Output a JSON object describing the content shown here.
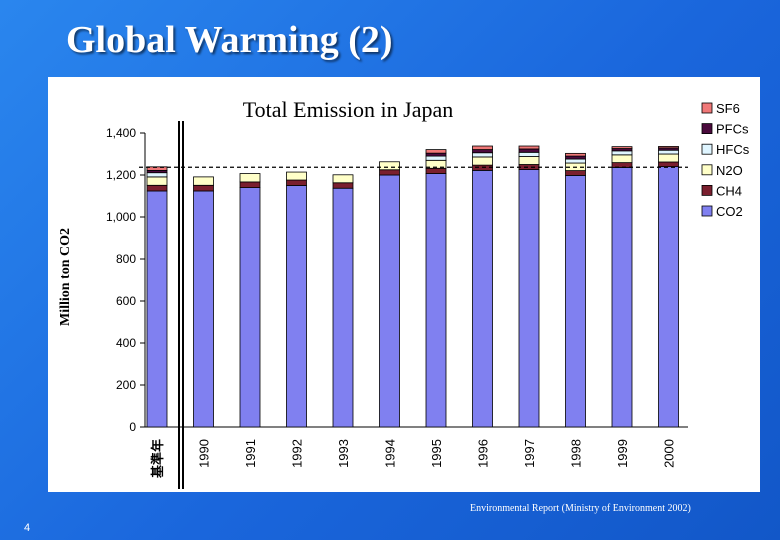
{
  "slide": {
    "title": "Global Warming (2)",
    "source": "Environmental Report (Ministry of Environment 2002)",
    "page_number": "4"
  },
  "chart_data": {
    "type": "bar",
    "stacked": true,
    "title": "Total Emission in Japan",
    "ylabel": "Million ton CO2",
    "xlabel": "",
    "ylim": [
      0,
      1400
    ],
    "yticks": [
      0,
      200,
      400,
      600,
      800,
      1000,
      1200,
      1400
    ],
    "ytick_labels": [
      "0",
      "200",
      "400",
      "600",
      "800",
      "1,000",
      "1,200",
      "1,400"
    ],
    "categories": [
      "基準年",
      "1990",
      "1991",
      "1992",
      "1993",
      "1994",
      "1995",
      "1996",
      "1997",
      "1998",
      "1999",
      "2000"
    ],
    "baseline_reference": 1237,
    "grid": false,
    "legend_position": "right",
    "series": [
      {
        "name": "CO2",
        "color": "#8080f0",
        "values": [
          1124,
          1124,
          1140,
          1150,
          1137,
          1200,
          1207,
          1222,
          1226,
          1198,
          1236,
          1240
        ]
      },
      {
        "name": "CH4",
        "color": "#7a1f2e",
        "values": [
          27,
          27,
          27,
          26,
          26,
          25,
          25,
          25,
          24,
          23,
          23,
          22
        ]
      },
      {
        "name": "N2O",
        "color": "#ffffc8",
        "values": [
          40,
          40,
          40,
          38,
          38,
          38,
          38,
          39,
          38,
          36,
          37,
          38
        ]
      },
      {
        "name": "HFCs",
        "color": "#dff5ff",
        "values": [
          20,
          0,
          0,
          0,
          0,
          0,
          20,
          20,
          20,
          19,
          19,
          18
        ]
      },
      {
        "name": "PFCs",
        "color": "#4a0a3c",
        "values": [
          11,
          0,
          0,
          0,
          0,
          0,
          14,
          15,
          16,
          14,
          11,
          11
        ]
      },
      {
        "name": "SF6",
        "color": "#f07878",
        "values": [
          17,
          0,
          0,
          0,
          0,
          0,
          17,
          17,
          14,
          13,
          9,
          7
        ]
      }
    ]
  },
  "colors": {
    "background": "#1a66dc",
    "panel": "#ffffff"
  }
}
